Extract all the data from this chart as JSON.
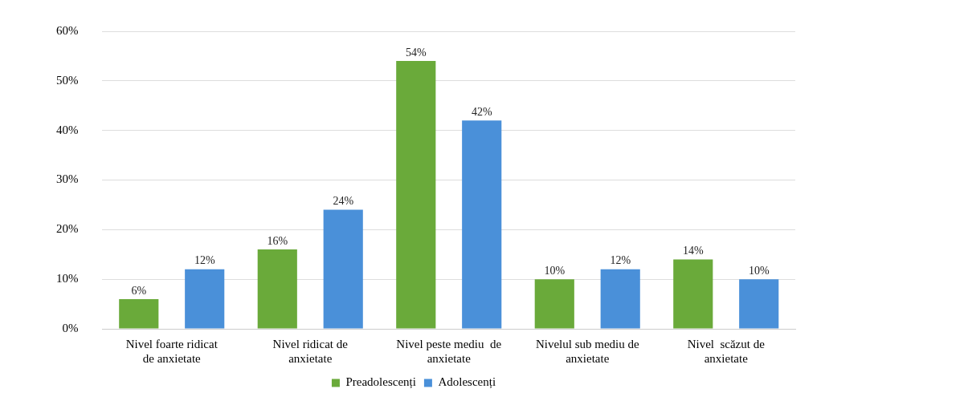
{
  "chart_data": {
    "type": "bar",
    "categories": [
      "Nivel foarte ridicat de anxietate",
      "Nivel ridicat de anxietate",
      "Nivel peste mediu  de anxietate",
      "Nivelul sub mediu de anxietate",
      "Nivel  scăzut de anxietate"
    ],
    "series": [
      {
        "name": "Preadolescenți",
        "color": "#6aaa3a",
        "values": [
          6,
          16,
          54,
          10,
          14
        ],
        "value_labels": [
          "6%",
          "16%",
          "54%",
          "10%",
          "14%"
        ]
      },
      {
        "name": "Adolescenți",
        "color": "#4a90d9",
        "values": [
          12,
          24,
          42,
          12,
          10
        ],
        "value_labels": [
          "12%",
          "24%",
          "42%",
          "12%",
          "10%"
        ]
      }
    ],
    "ylim": [
      0,
      60
    ],
    "yticks": [
      {
        "value": 0,
        "label": "0%"
      },
      {
        "value": 10,
        "label": "10%"
      },
      {
        "value": 20,
        "label": "20%"
      },
      {
        "value": 30,
        "label": "30%"
      },
      {
        "value": 40,
        "label": "40%"
      },
      {
        "value": 50,
        "label": "50%"
      },
      {
        "value": 60,
        "label": "60%"
      }
    ],
    "grid": "y",
    "legend": "bottom"
  }
}
